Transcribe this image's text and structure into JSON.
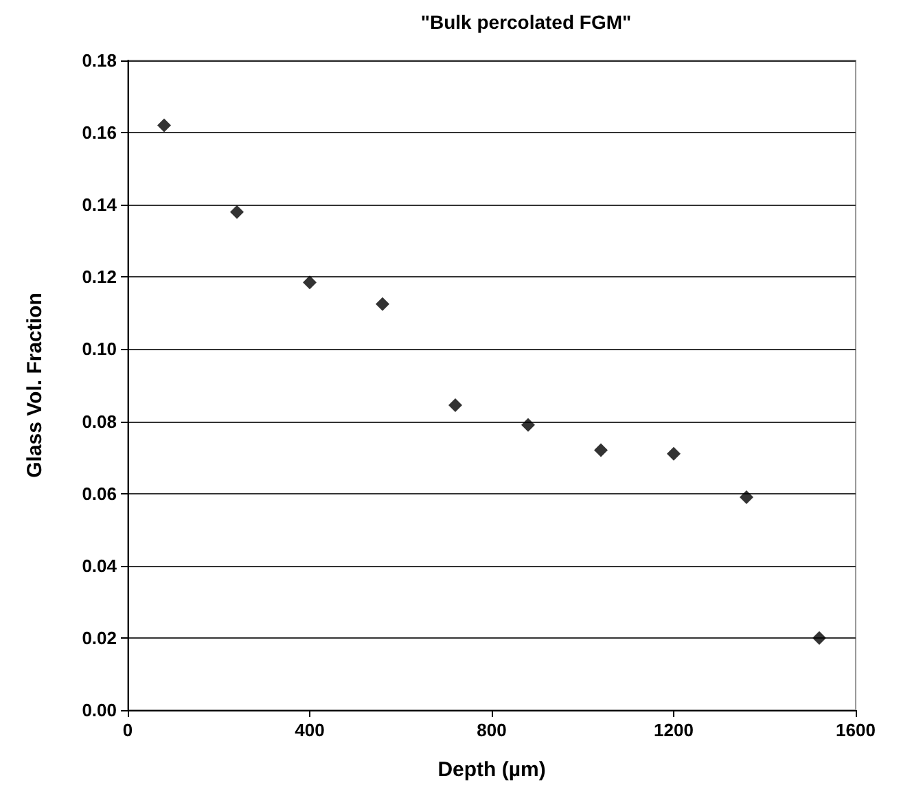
{
  "chart_data": {
    "type": "scatter",
    "title": "\"Bulk percolated FGM\"",
    "xlabel": "Depth (µm)",
    "ylabel": "Glass Vol. Fraction",
    "x": [
      80,
      240,
      400,
      560,
      720,
      880,
      1040,
      1200,
      1360,
      1520
    ],
    "series": [
      {
        "color": "#000000",
        "values": [
          0.162,
          0.138,
          0.1185,
          0.1125,
          0.0845,
          0.079,
          0.072,
          0.071,
          0.059,
          0.02
        ]
      }
    ],
    "xlim": [
      0,
      1600
    ],
    "xticks": [
      0,
      400,
      800,
      {
        "value": 1200,
        "label": "1200"
      },
      {
        "value": 1600,
        "label": "1600"
      }
    ],
    "ylim": [
      0,
      0.18
    ],
    "yticks": [
      {
        "value": 0,
        "label": "0.00"
      },
      0.02,
      0.04,
      0.06,
      0.08,
      {
        "value": 0.1,
        "label": "0.10"
      },
      0.12,
      0.14,
      0.16,
      0.18
    ],
    "grid": "y",
    "marker": "diamond"
  }
}
